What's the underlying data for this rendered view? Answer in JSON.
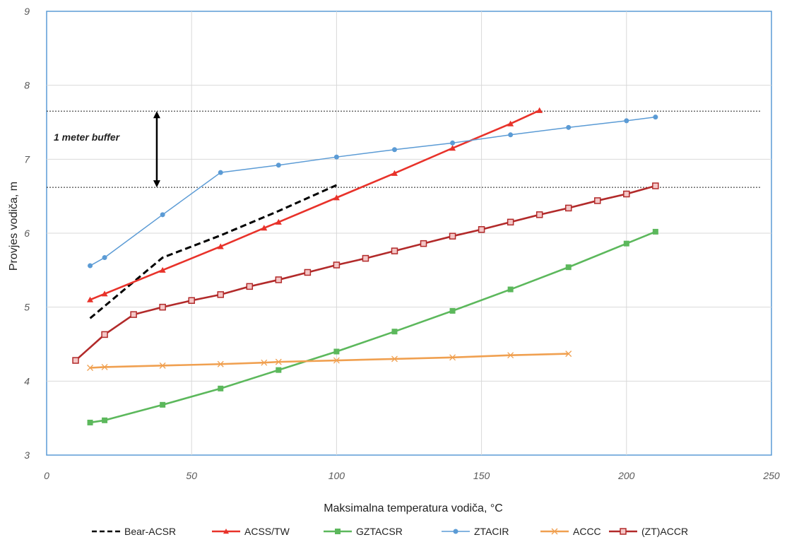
{
  "chart_data": {
    "type": "line",
    "xlabel": "Maksimalna temperatura vodiča, °C",
    "ylabel": "Provjes vodiča, m",
    "xlim": [
      0,
      250
    ],
    "ylim": [
      3,
      9
    ],
    "x_ticks": [
      0,
      50,
      100,
      150,
      200,
      250
    ],
    "y_ticks": [
      3,
      4,
      5,
      6,
      7,
      8,
      9
    ],
    "grid": true,
    "legend_position": "bottom",
    "series": [
      {
        "name": "Bear-ACSR",
        "color": "#000000",
        "dash": "dashed",
        "marker": "none",
        "x": [
          15,
          40,
          60,
          80,
          100
        ],
        "y": [
          4.85,
          5.67,
          5.97,
          6.3,
          6.65
        ]
      },
      {
        "name": "ACSS/TW",
        "color": "#e8322a",
        "dash": "solid",
        "marker": "triangle",
        "x": [
          15,
          20,
          40,
          60,
          75,
          80,
          100,
          120,
          140,
          160,
          170
        ],
        "y": [
          5.1,
          5.18,
          5.5,
          5.82,
          6.07,
          6.15,
          6.48,
          6.81,
          7.15,
          7.48,
          7.66
        ]
      },
      {
        "name": "GZTACSR",
        "color": "#5cb85c",
        "dash": "solid",
        "marker": "square",
        "x": [
          15,
          20,
          40,
          60,
          80,
          100,
          120,
          140,
          160,
          180,
          200,
          210
        ],
        "y": [
          3.44,
          3.47,
          3.68,
          3.9,
          4.15,
          4.4,
          4.67,
          4.95,
          5.24,
          5.54,
          5.86,
          6.02
        ]
      },
      {
        "name": "ZTACIR",
        "color": "#5b9bd5",
        "dash": "solid",
        "marker": "circle",
        "x": [
          15,
          20,
          40,
          60,
          80,
          100,
          120,
          140,
          160,
          180,
          200,
          210
        ],
        "y": [
          5.56,
          5.67,
          6.25,
          6.82,
          6.92,
          7.03,
          7.13,
          7.22,
          7.33,
          7.43,
          7.52,
          7.57
        ]
      },
      {
        "name": "ACCC",
        "color": "#f0a050",
        "dash": "solid",
        "marker": "x",
        "x": [
          15,
          20,
          40,
          60,
          75,
          80,
          100,
          120,
          140,
          160,
          180
        ],
        "y": [
          4.18,
          4.19,
          4.21,
          4.23,
          4.25,
          4.26,
          4.28,
          4.3,
          4.32,
          4.35,
          4.37
        ]
      },
      {
        "name": "(ZT)ACCR",
        "color": "#b22a2a",
        "dash": "solid",
        "marker": "square-open",
        "x": [
          10,
          20,
          30,
          40,
          50,
          60,
          70,
          80,
          90,
          100,
          110,
          120,
          130,
          140,
          150,
          160,
          170,
          180,
          190,
          200,
          210
        ],
        "y": [
          4.28,
          4.63,
          4.9,
          5.0,
          5.09,
          5.17,
          5.28,
          5.37,
          5.47,
          5.57,
          5.66,
          5.76,
          5.86,
          5.96,
          6.05,
          6.15,
          6.25,
          6.34,
          6.44,
          6.53,
          6.64
        ]
      }
    ],
    "reference_lines": [
      7.65,
      6.62
    ],
    "annotation": {
      "text": "1 meter  buffer",
      "x": 38,
      "y_from": 6.62,
      "y_to": 7.65
    }
  }
}
